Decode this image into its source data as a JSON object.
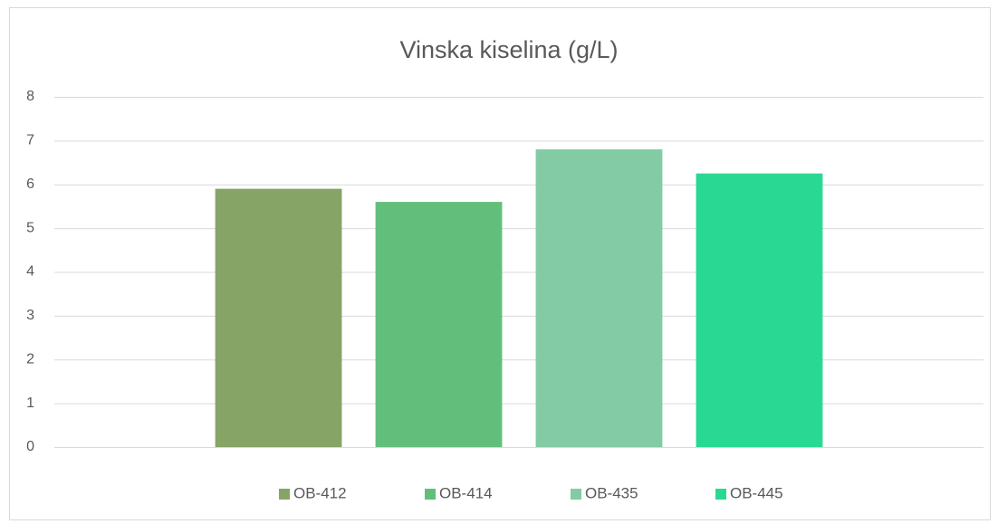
{
  "chart_data": {
    "type": "bar",
    "title": "Vinska kiselina (g/L)",
    "categories": [
      null
    ],
    "series": [
      {
        "name": "OB-412",
        "color": "#86a465",
        "values": [
          5.9
        ]
      },
      {
        "name": "OB-414",
        "color": "#62bf7b",
        "values": [
          5.6
        ]
      },
      {
        "name": "OB-435",
        "color": "#82cba4",
        "values": [
          6.8
        ]
      },
      {
        "name": "OB-445",
        "color": "#29d993",
        "values": [
          6.25
        ]
      }
    ],
    "ylim": [
      0,
      8
    ],
    "yticks": [
      0,
      1,
      2,
      3,
      4,
      5,
      6,
      7,
      8
    ],
    "grid": true,
    "legend": "bottom"
  }
}
